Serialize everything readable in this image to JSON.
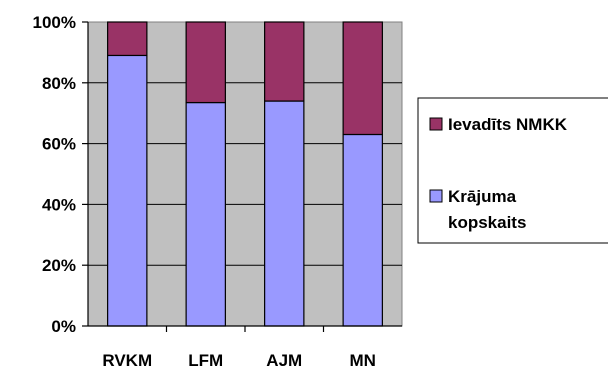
{
  "chart_data": {
    "type": "bar",
    "stacked": "percent",
    "categories": [
      "RVKM",
      "LFM",
      "AJM",
      "MN"
    ],
    "series": [
      {
        "name": "Krājuma kopskaits",
        "values": [
          89,
          73.5,
          74,
          63
        ],
        "color": "#9999FF"
      },
      {
        "name": "Ievadīts NMKK",
        "values": [
          11,
          26.5,
          26,
          37
        ],
        "color": "#993366"
      }
    ],
    "ylim": [
      0,
      100
    ],
    "yticks": [
      "0%",
      "20%",
      "40%",
      "60%",
      "80%",
      "100%"
    ],
    "plot_background": "#C0C0C0",
    "grid": true,
    "legend_position": "right",
    "legend_entries": [
      {
        "label": "Ievadīts NMKK",
        "color": "#993366"
      },
      {
        "label": "Krājuma kopskaits",
        "color": "#9999FF"
      }
    ],
    "title": "",
    "xlabel": "",
    "ylabel": ""
  }
}
